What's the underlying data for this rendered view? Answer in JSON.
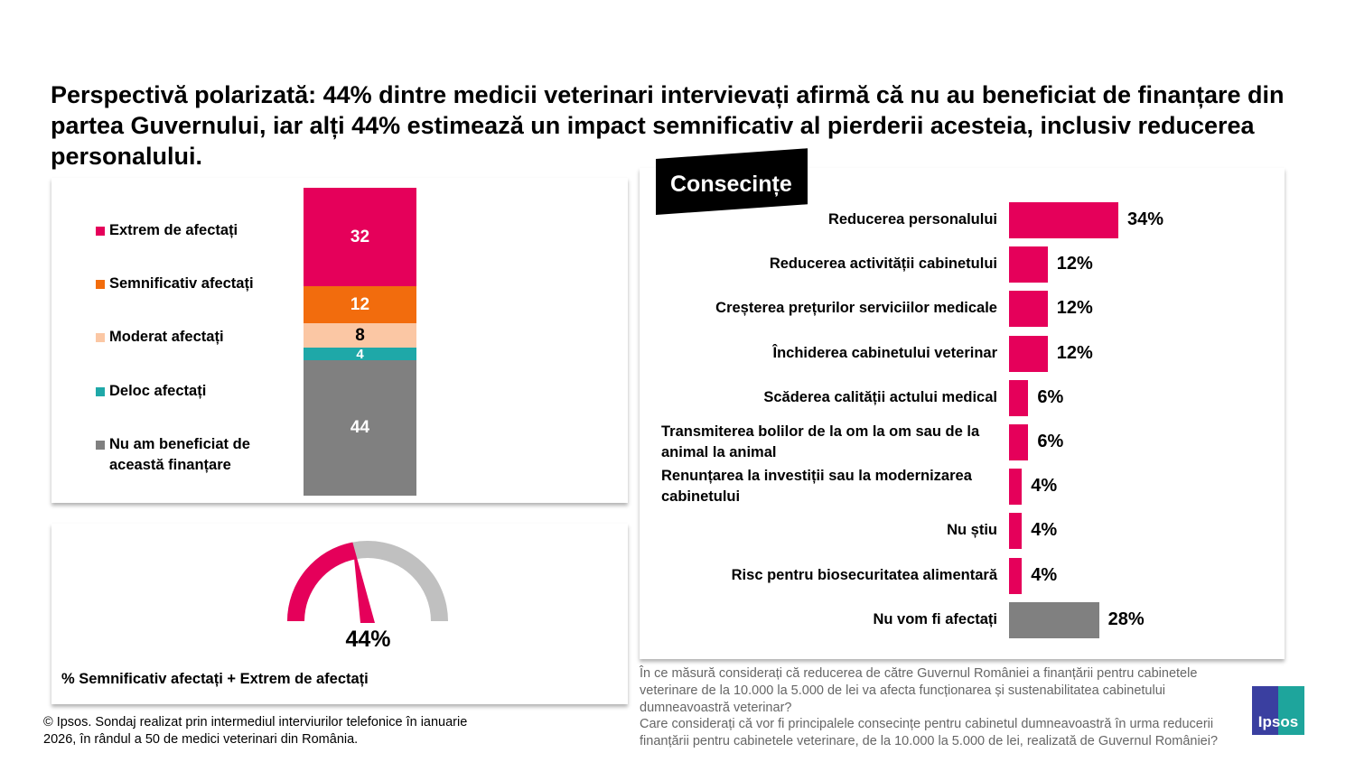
{
  "title": "Perspectivă polarizată: 44% dintre medicii veterinari intervievați afirmă că nu au beneficiat de finanțare din partea Guvernului, iar alți 44% estimează un impact semnificativ al pierderii acesteia, inclusiv reducerea personalului.",
  "colors": {
    "pink": "#E5005A",
    "orange": "#F26C0D",
    "peach": "#FBC7A4",
    "teal": "#1FA8A8",
    "gray": "#808080",
    "lightgray": "#C0C0C0"
  },
  "chart_data": [
    {
      "type": "bar",
      "stacked": true,
      "categories": [
        "Extrem de afectați",
        "Semnificativ afectați",
        "Moderat afectați",
        "Deloc afectați",
        "Nu am beneficiat de această finanțare"
      ],
      "values": [
        32,
        12,
        8,
        4,
        44
      ],
      "value_labels": [
        "32",
        "12",
        "8",
        "4",
        "44"
      ],
      "colors": [
        "#E5005A",
        "#F26C0D",
        "#FBC7A4",
        "#1FA8A8",
        "#808080"
      ],
      "legend": "left"
    },
    {
      "type": "gauge",
      "value": 44,
      "label": "44%",
      "caption": "% Semnificativ afectați + Extrem de afectați"
    },
    {
      "type": "bar",
      "orientation": "horizontal",
      "title": "Consecințe",
      "categories": [
        "Reducerea personalului",
        "Reducerea activității cabinetului",
        "Creșterea prețurilor serviciilor medicale",
        "Închiderea cabinetului veterinar",
        "Scăderea calității actului medical",
        "Transmiterea bolilor de la om la om sau de la animal la animal",
        "Renunțarea la investiții sau la modernizarea cabinetului",
        "Nu știu",
        "Risc pentru biosecuritatea alimentară",
        "Nu vom fi afectați"
      ],
      "values": [
        34,
        12,
        12,
        12,
        6,
        6,
        4,
        4,
        4,
        28
      ],
      "value_labels": [
        "34%",
        "12%",
        "12%",
        "12%",
        "6%",
        "6%",
        "4%",
        "4%",
        "4%",
        "28%"
      ]
    }
  ],
  "footer": {
    "source": "© Ipsos. Sondaj realizat prin intermediul interviurilor telefonice în ianuarie 2026, în rândul a 50 de medici veterinari din România.",
    "question1": "În ce măsură considerați că reducerea de către Guvernul României a finanțării pentru cabinetele veterinare de la 10.000 la 5.000 de lei va afecta funcționarea și sustenabilitatea cabinetului dumneavoastră veterinar?",
    "question2": "Care considerați că vor fi principalele consecințe pentru cabinetul dumneavoastră în urma reducerii finanțării pentru cabinetele veterinare, de la 10.000 la 5.000 de lei, realizată de Guvernul României?"
  },
  "logo": "Ipsos"
}
